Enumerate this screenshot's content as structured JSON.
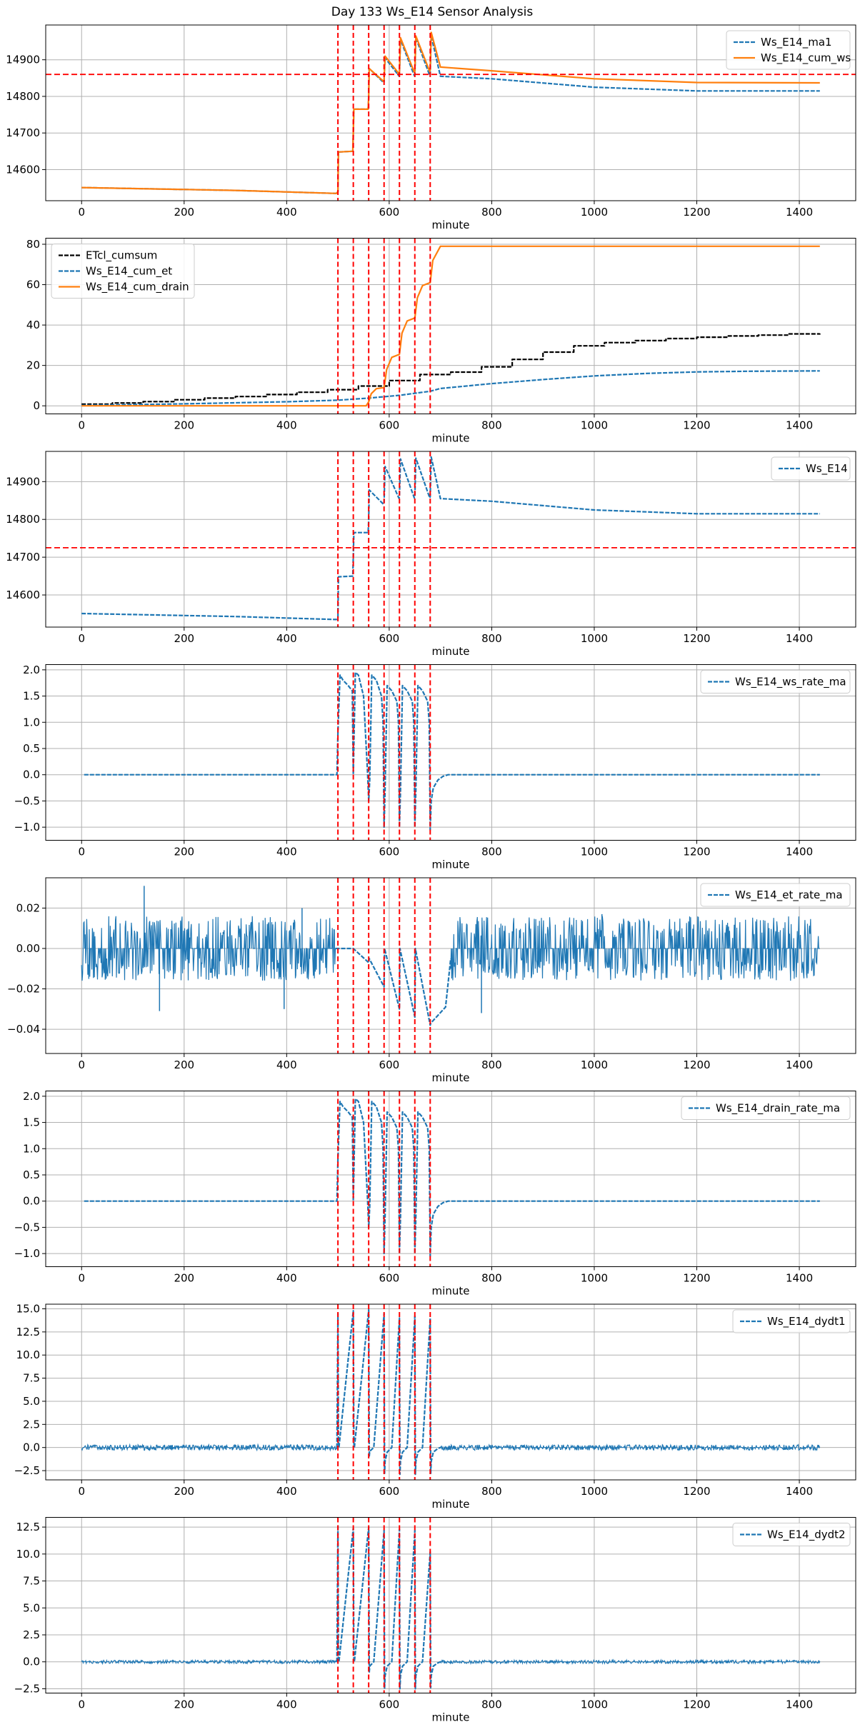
{
  "figure": {
    "title": "Day 133 Ws_E14 Sensor Analysis"
  },
  "colors": {
    "blue": "#1f77b4",
    "orange": "#ff7f0e",
    "black": "#000000",
    "red": "#ff0000",
    "grid": "#b0b0b0"
  },
  "chart_data": [
    {
      "type": "line",
      "xlabel": "minute",
      "xlim": [
        -70,
        1510
      ],
      "ylim": [
        14515,
        14995
      ],
      "xticks": [
        0,
        200,
        400,
        600,
        800,
        1000,
        1200,
        1400
      ],
      "yticks": [
        14600,
        14700,
        14800,
        14900
      ],
      "hlines": [
        14860
      ],
      "vlines": [
        500,
        530,
        560,
        590,
        620,
        650,
        680
      ],
      "legend": "upper-right",
      "series": [
        {
          "name": "Ws_E14_ma1",
          "color": "blue",
          "style": "dashed",
          "kind": "line",
          "x": [
            0,
            300,
            497,
            500,
            501,
            529,
            530,
            531,
            559,
            560,
            561,
            589,
            590,
            592,
            619,
            620,
            622,
            649,
            650,
            652,
            679,
            680,
            682,
            700,
            800,
            1000,
            1200,
            1440
          ],
          "y": [
            14551,
            14543,
            14535,
            14540,
            14648,
            14650,
            14700,
            14765,
            14765,
            14800,
            14876,
            14838,
            14840,
            14905,
            14856,
            14860,
            14955,
            14857,
            14860,
            14960,
            14857,
            14860,
            14965,
            14855,
            14848,
            14825,
            14815,
            14815
          ]
        },
        {
          "name": "Ws_E14_cum_ws",
          "color": "orange",
          "style": "solid",
          "kind": "line",
          "x": [
            0,
            300,
            497,
            500,
            501,
            529,
            530,
            531,
            559,
            560,
            561,
            589,
            590,
            592,
            619,
            620,
            622,
            649,
            650,
            652,
            679,
            680,
            682,
            700,
            800,
            1000,
            1200,
            1440
          ],
          "y": [
            14551,
            14543,
            14535,
            14540,
            14648,
            14650,
            14700,
            14765,
            14765,
            14800,
            14876,
            14841,
            14845,
            14910,
            14862,
            14866,
            14960,
            14866,
            14870,
            14965,
            14868,
            14872,
            14975,
            14880,
            14870,
            14848,
            14838,
            14837
          ]
        }
      ]
    },
    {
      "type": "line",
      "xlabel": "minute",
      "xlim": [
        -70,
        1510
      ],
      "ylim": [
        -4,
        83
      ],
      "xticks": [
        0,
        200,
        400,
        600,
        800,
        1000,
        1200,
        1400
      ],
      "yticks": [
        0,
        20,
        40,
        60,
        80
      ],
      "vlines": [
        500,
        530,
        560,
        590,
        620,
        650,
        680
      ],
      "legend": "upper-left",
      "series": [
        {
          "name": "ETcl_cumsum",
          "color": "black",
          "style": "dashed",
          "kind": "step",
          "x": [
            0,
            60,
            120,
            180,
            240,
            300,
            360,
            420,
            480,
            540,
            600,
            660,
            720,
            780,
            840,
            900,
            960,
            1020,
            1080,
            1140,
            1200,
            1260,
            1320,
            1380,
            1440
          ],
          "y": [
            0.8,
            1.4,
            2.1,
            3.0,
            3.8,
            4.6,
            5.6,
            6.7,
            8.0,
            9.8,
            12.5,
            15.5,
            16.7,
            19.3,
            23.0,
            26.6,
            29.7,
            31.3,
            32.3,
            33.3,
            34.0,
            34.6,
            35.0,
            35.6,
            35.8
          ]
        },
        {
          "name": "Ws_E14_cum_et",
          "color": "blue",
          "style": "dashed",
          "kind": "line",
          "x": [
            0,
            200,
            400,
            500,
            560,
            620,
            680,
            700,
            800,
            900,
            1000,
            1100,
            1200,
            1300,
            1440
          ],
          "y": [
            0.2,
            1.0,
            2.0,
            2.8,
            3.8,
            5.2,
            7.2,
            8.6,
            11.0,
            13.0,
            14.8,
            16.0,
            16.8,
            17.1,
            17.3
          ]
        },
        {
          "name": "Ws_E14_cum_drain",
          "color": "orange",
          "style": "solid",
          "kind": "line",
          "x": [
            0,
            555,
            560,
            565,
            575,
            590,
            595,
            605,
            620,
            625,
            635,
            650,
            655,
            665,
            680,
            685,
            700,
            1440
          ],
          "y": [
            0.0,
            0.0,
            2.0,
            6.0,
            8.5,
            9.0,
            18.0,
            24.0,
            25.5,
            36.0,
            42.0,
            43.5,
            53.5,
            59.5,
            61.0,
            72.0,
            79.0,
            79.0
          ]
        }
      ]
    },
    {
      "type": "line",
      "xlabel": "minute",
      "xlim": [
        -70,
        1510
      ],
      "ylim": [
        14515,
        14980
      ],
      "xticks": [
        0,
        200,
        400,
        600,
        800,
        1000,
        1200,
        1400
      ],
      "yticks": [
        14600,
        14700,
        14800,
        14900
      ],
      "hlines": [
        14725
      ],
      "vlines": [
        500,
        530,
        560,
        590,
        620,
        650,
        680
      ],
      "legend": "upper-right",
      "series": [
        {
          "name": "Ws_E14",
          "color": "blue",
          "style": "dashed",
          "kind": "line",
          "x": [
            0,
            300,
            497,
            500,
            501,
            529,
            530,
            531,
            559,
            560,
            561,
            589,
            590,
            592,
            619,
            620,
            622,
            649,
            650,
            652,
            679,
            680,
            682,
            700,
            800,
            1000,
            1200,
            1440
          ],
          "y": [
            14551,
            14543,
            14535,
            14540,
            14648,
            14650,
            14700,
            14765,
            14765,
            14800,
            14878,
            14840,
            14845,
            14940,
            14856,
            14860,
            14960,
            14857,
            14860,
            14962,
            14857,
            14860,
            14965,
            14855,
            14848,
            14825,
            14815,
            14815
          ]
        }
      ]
    },
    {
      "type": "line",
      "xlabel": "minute",
      "xlim": [
        -70,
        1510
      ],
      "ylim": [
        -1.25,
        2.1
      ],
      "xticks": [
        0,
        200,
        400,
        600,
        800,
        1000,
        1200,
        1400
      ],
      "yticks": [
        -1.0,
        -0.5,
        0.0,
        0.5,
        1.0,
        1.5,
        2.0
      ],
      "vlines": [
        500,
        530,
        560,
        590,
        620,
        650,
        680
      ],
      "legend": "upper-right",
      "series": [
        {
          "name": "Ws_E14_ws_rate_ma",
          "color": "blue",
          "style": "dashed",
          "kind": "line",
          "x": [
            5,
            498,
            500,
            504,
            510,
            520,
            528,
            530,
            534,
            540,
            550,
            558,
            560,
            562,
            566,
            575,
            585,
            588,
            590,
            592,
            596,
            605,
            615,
            618,
            620,
            622,
            626,
            635,
            645,
            648,
            650,
            652,
            656,
            665,
            675,
            678,
            680,
            682,
            686,
            695,
            705,
            715,
            1440
          ],
          "y": [
            0.0,
            0.0,
            0.8,
            1.9,
            1.8,
            1.7,
            1.6,
            0.0,
            1.95,
            1.9,
            1.5,
            0.0,
            -0.5,
            -0.1,
            1.9,
            1.8,
            1.5,
            1.0,
            -1.0,
            -0.3,
            1.7,
            1.6,
            1.4,
            1.0,
            -1.0,
            -0.3,
            1.7,
            1.6,
            1.4,
            1.0,
            -1.0,
            -0.3,
            1.7,
            1.6,
            1.4,
            1.0,
            -1.05,
            -0.5,
            -0.25,
            -0.1,
            -0.03,
            0.0,
            0.0
          ]
        }
      ]
    },
    {
      "type": "line",
      "xlabel": "minute",
      "xlim": [
        -70,
        1510
      ],
      "ylim": [
        -0.052,
        0.035
      ],
      "xticks": [
        0,
        200,
        400,
        600,
        800,
        1000,
        1200,
        1400
      ],
      "yticks": [
        -0.04,
        -0.02,
        0.0,
        0.02
      ],
      "vlines": [
        500,
        530,
        560,
        590,
        620,
        650,
        680
      ],
      "legend": "upper-right",
      "noise_regions": [
        {
          "x": [
            0,
            495
          ],
          "low": -0.016,
          "high": 0.016
        },
        {
          "x": [
            720,
            1440
          ],
          "low": -0.016,
          "high": 0.016
        }
      ],
      "spikes": [
        {
          "x": 122,
          "y": 0.031
        },
        {
          "x": 430,
          "y": 0.02
        },
        {
          "x": 395,
          "y": -0.03
        },
        {
          "x": 152,
          "y": -0.031
        },
        {
          "x": 1015,
          "y": 0.017
        },
        {
          "x": 780,
          "y": -0.032
        }
      ],
      "series": [
        {
          "name": "Ws_E14_et_rate_ma",
          "color": "blue",
          "style": "dashed",
          "kind": "line",
          "x": [
            495,
            530,
            560,
            561,
            590,
            591,
            620,
            621,
            650,
            651,
            680,
            681,
            710,
            720
          ],
          "y": [
            0.0,
            0.0,
            -0.007,
            -0.005,
            -0.019,
            0.0,
            -0.03,
            0.0,
            -0.034,
            0.0,
            -0.038,
            -0.037,
            -0.029,
            -0.005
          ]
        }
      ]
    },
    {
      "type": "line",
      "xlabel": "minute",
      "xlim": [
        -70,
        1510
      ],
      "ylim": [
        -1.25,
        2.1
      ],
      "xticks": [
        0,
        200,
        400,
        600,
        800,
        1000,
        1200,
        1400
      ],
      "yticks": [
        -1.0,
        -0.5,
        0.0,
        0.5,
        1.0,
        1.5,
        2.0
      ],
      "vlines": [
        500,
        530,
        560,
        590,
        620,
        650,
        680
      ],
      "legend": "upper-right",
      "series": [
        {
          "name": "Ws_E14_drain_rate_ma",
          "color": "blue",
          "style": "dashed",
          "kind": "line",
          "x": [
            5,
            498,
            500,
            504,
            510,
            520,
            528,
            530,
            534,
            540,
            550,
            558,
            560,
            562,
            566,
            575,
            585,
            588,
            590,
            592,
            596,
            605,
            615,
            618,
            620,
            622,
            626,
            635,
            645,
            648,
            650,
            652,
            656,
            665,
            675,
            678,
            680,
            682,
            686,
            695,
            705,
            715,
            1440
          ],
          "y": [
            0.0,
            0.0,
            0.8,
            1.9,
            1.8,
            1.7,
            1.6,
            0.0,
            1.95,
            1.9,
            1.5,
            0.0,
            -0.5,
            -0.1,
            1.9,
            1.8,
            1.5,
            1.0,
            -1.0,
            -0.3,
            1.7,
            1.6,
            1.4,
            1.0,
            -1.0,
            -0.3,
            1.7,
            1.6,
            1.4,
            1.0,
            -1.0,
            -0.3,
            1.7,
            1.6,
            1.4,
            1.0,
            -1.05,
            -0.5,
            -0.25,
            -0.1,
            -0.03,
            0.0,
            0.0
          ]
        }
      ]
    },
    {
      "type": "line",
      "xlabel": "minute",
      "xlim": [
        -70,
        1510
      ],
      "ylim": [
        -3.5,
        15.5
      ],
      "xticks": [
        0,
        200,
        400,
        600,
        800,
        1000,
        1200,
        1400
      ],
      "yticks": [
        -2.5,
        0.0,
        2.5,
        5.0,
        7.5,
        10.0,
        12.5,
        15.0
      ],
      "vlines": [
        500,
        530,
        560,
        590,
        620,
        650,
        680
      ],
      "legend": "upper-right",
      "noise_regions": [
        {
          "x": [
            0,
            498
          ],
          "low": -0.3,
          "high": 0.3
        },
        {
          "x": [
            700,
            1440
          ],
          "low": -0.3,
          "high": 0.3
        }
      ],
      "series": [
        {
          "name": "Ws_E14_dydt1",
          "color": "blue",
          "style": "dashed",
          "kind": "line",
          "x": [
            498,
            500,
            501,
            502,
            530,
            531,
            532,
            560,
            561,
            562,
            570,
            590,
            591,
            592,
            596,
            605,
            620,
            621,
            622,
            626,
            635,
            650,
            651,
            652,
            656,
            665,
            680,
            681,
            682,
            686,
            695,
            700
          ],
          "y": [
            0.0,
            14.5,
            0.5,
            0.0,
            14.8,
            0.5,
            0.0,
            14.9,
            -1.0,
            -0.4,
            0.0,
            14.5,
            -2.8,
            -1.5,
            -0.5,
            0.0,
            14.0,
            -2.9,
            -1.5,
            -0.5,
            0.0,
            14.2,
            -2.9,
            -1.5,
            -0.5,
            0.0,
            14.0,
            -2.8,
            -1.5,
            -0.5,
            -0.1,
            0.0
          ]
        }
      ]
    },
    {
      "type": "line",
      "xlabel": "minute",
      "xlim": [
        -70,
        1510
      ],
      "ylim": [
        -2.9,
        13.4
      ],
      "xticks": [
        0,
        200,
        400,
        600,
        800,
        1000,
        1200,
        1400
      ],
      "yticks": [
        -2.5,
        0.0,
        2.5,
        5.0,
        7.5,
        10.0,
        12.5
      ],
      "vlines": [
        500,
        530,
        560,
        590,
        620,
        650,
        680
      ],
      "legend": "upper-right",
      "noise_regions": [
        {
          "x": [
            0,
            498
          ],
          "low": -0.15,
          "high": 0.15
        },
        {
          "x": [
            700,
            1440
          ],
          "low": -0.15,
          "high": 0.15
        }
      ],
      "series": [
        {
          "name": "Ws_E14_dydt2",
          "color": "blue",
          "style": "dashed",
          "kind": "line",
          "x": [
            498,
            500,
            501,
            502,
            530,
            531,
            532,
            560,
            561,
            562,
            570,
            590,
            591,
            592,
            596,
            605,
            620,
            621,
            622,
            626,
            635,
            650,
            651,
            652,
            656,
            665,
            680,
            681,
            682,
            686,
            695,
            700
          ],
          "y": [
            0.0,
            12.7,
            0.4,
            0.0,
            12.4,
            0.4,
            0.0,
            12.5,
            -1.0,
            -0.4,
            0.0,
            12.2,
            -2.5,
            -1.3,
            -0.4,
            0.0,
            12.3,
            -2.5,
            -1.3,
            -0.4,
            0.0,
            12.2,
            -2.5,
            -1.3,
            -0.4,
            0.0,
            10.2,
            -2.4,
            -1.3,
            -0.4,
            -0.1,
            0.0
          ]
        }
      ]
    }
  ]
}
